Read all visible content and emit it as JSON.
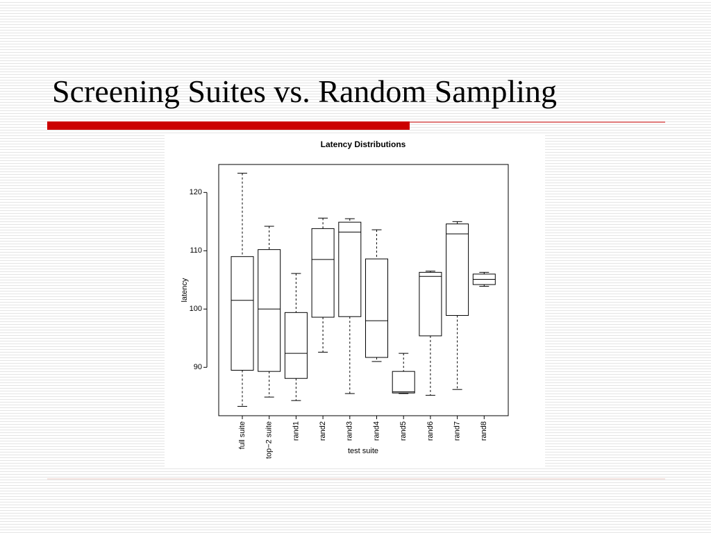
{
  "slide": {
    "title": "Screening Suites vs. Random Sampling"
  },
  "chart_data": {
    "type": "boxplot",
    "title": "Latency Distributions",
    "x_label": "test suite",
    "y_label": "latency",
    "categories": [
      "full suite",
      "top−2 suite",
      "rand1",
      "rand2",
      "rand3",
      "rand4",
      "rand5",
      "rand6",
      "rand7",
      "rand8"
    ],
    "whisker_high": [
      123.3,
      114.2,
      106.1,
      115.6,
      115.5,
      113.6,
      92.4,
      106.5,
      115.0,
      106.3
    ],
    "q3": [
      109.0,
      110.2,
      99.4,
      113.8,
      114.9,
      108.6,
      89.3,
      106.3,
      114.6,
      106.0
    ],
    "median": [
      101.5,
      100.0,
      92.4,
      108.5,
      113.2,
      98.0,
      85.8,
      105.6,
      112.9,
      105.1
    ],
    "q1": [
      89.5,
      89.3,
      88.1,
      98.6,
      98.7,
      91.7,
      85.6,
      95.4,
      98.9,
      104.2
    ],
    "whisker_low": [
      83.3,
      84.9,
      84.3,
      92.6,
      85.5,
      91.0,
      85.5,
      85.2,
      86.2,
      103.9
    ],
    "color": "#000000",
    "ylim": [
      81.7,
      124.8
    ],
    "yticks": [
      90,
      100,
      110,
      120
    ]
  }
}
